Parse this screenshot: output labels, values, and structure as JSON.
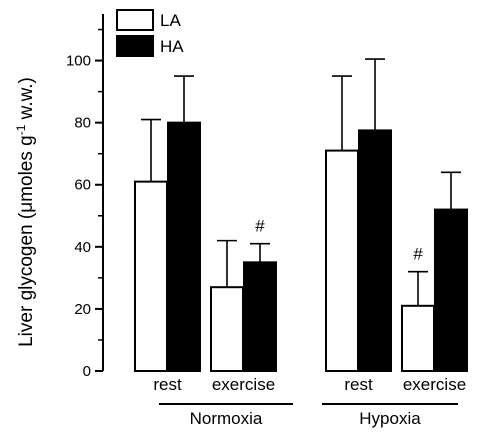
{
  "chart_data": {
    "type": "bar",
    "groups": [
      "Normoxia",
      "Hypoxia"
    ],
    "categories": [
      "rest",
      "exercise",
      "rest",
      "exercise"
    ],
    "category_group": [
      0,
      0,
      1,
      1
    ],
    "series": [
      {
        "name": "LA",
        "color": "#ffffff",
        "values": [
          61,
          27,
          71,
          21
        ],
        "errors": [
          20,
          15,
          24,
          11
        ]
      },
      {
        "name": "HA",
        "color": "#000000",
        "values": [
          80,
          35,
          77.5,
          52
        ],
        "errors": [
          15,
          6,
          23,
          12
        ]
      }
    ],
    "annotations": [
      {
        "text": "#",
        "category_index": 1,
        "series": "HA"
      },
      {
        "text": "#",
        "category_index": 3,
        "series": "LA"
      }
    ],
    "ylabel_prefix": "Liver glycogen (",
    "ylabel_mu": "μ",
    "ylabel_mid": "moles g",
    "ylabel_sup": "-1",
    "ylabel_suffix": " w.w.)",
    "ylim": [
      0,
      115
    ],
    "yticks": [
      0,
      20,
      40,
      60,
      80,
      100
    ],
    "yticks_labels": [
      "0",
      "20",
      "40",
      "60",
      "80",
      "100"
    ],
    "legend_position": "top-left"
  }
}
